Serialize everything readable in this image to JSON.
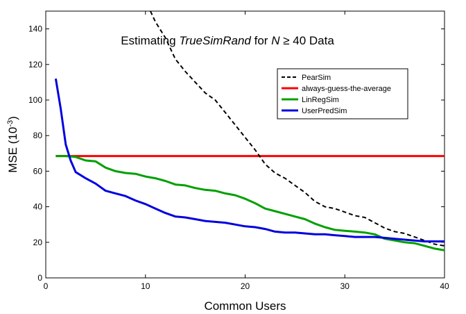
{
  "chart_data": {
    "type": "line",
    "title_parts": [
      {
        "text": "Estimating ",
        "italic": false
      },
      {
        "text": "TrueSimRand",
        "italic": true
      },
      {
        "text": " for ",
        "italic": false
      },
      {
        "text": "N",
        "italic": true
      },
      {
        "text": " ≥ 40 Data",
        "italic": false
      }
    ],
    "xlabel": "Common Users",
    "ylabel_base": "MSE (10",
    "ylabel_sup": "-3",
    "ylabel_end": ")",
    "xlim": [
      0,
      40
    ],
    "ylim": [
      0,
      150
    ],
    "xticks": [
      0,
      10,
      20,
      30,
      40
    ],
    "yticks": [
      0,
      20,
      40,
      60,
      80,
      100,
      120,
      140
    ],
    "legend_position": "upper-right",
    "series": [
      {
        "name": "PearSim",
        "color": "#000000",
        "dash": true,
        "x": [
          10.5,
          11,
          12,
          13,
          14,
          15,
          16,
          17,
          18,
          19,
          20,
          21,
          22,
          23,
          24,
          25,
          26,
          27,
          28,
          29,
          30,
          31,
          32,
          33,
          34,
          35,
          36,
          37,
          38,
          39,
          40
        ],
        "y": [
          150,
          144,
          135,
          123,
          116,
          110,
          104,
          100,
          93,
          86,
          79,
          72,
          64,
          59,
          56,
          52,
          48,
          43,
          40,
          39,
          37,
          35,
          34,
          31,
          28,
          26,
          25,
          23,
          21,
          19,
          18
        ]
      },
      {
        "name": "always-guess-the-average",
        "color": "#ff0000",
        "dash": false,
        "x": [
          1,
          40
        ],
        "y": [
          68.5,
          68.5
        ]
      },
      {
        "name": "LinRegSim",
        "color": "#00a000",
        "dash": false,
        "x": [
          1,
          2,
          3,
          4,
          5,
          6,
          7,
          8,
          9,
          10,
          11,
          12,
          13,
          14,
          15,
          16,
          17,
          18,
          19,
          20,
          21,
          22,
          23,
          24,
          25,
          26,
          27,
          28,
          29,
          30,
          31,
          32,
          33,
          34,
          35,
          36,
          37,
          38,
          39,
          40
        ],
        "y": [
          68.5,
          68.5,
          68,
          66,
          65.5,
          62,
          60,
          59,
          58.5,
          57,
          56,
          54.5,
          52.5,
          52,
          50.5,
          49.5,
          49,
          47.5,
          46.5,
          44.5,
          42,
          39,
          37.5,
          36,
          34.5,
          33,
          30.5,
          28.5,
          27,
          26.5,
          26,
          25.5,
          24.5,
          22,
          21,
          20,
          19.5,
          18,
          16.5,
          15.5
        ]
      },
      {
        "name": "UserPredSim",
        "color": "#0000e0",
        "dash": false,
        "x": [
          1,
          1.5,
          2,
          2.5,
          3,
          4,
          5,
          6,
          7,
          8,
          9,
          10,
          11,
          12,
          13,
          14,
          15,
          16,
          17,
          18,
          19,
          20,
          21,
          22,
          23,
          24,
          25,
          26,
          27,
          28,
          29,
          30,
          31,
          32,
          33,
          34,
          35,
          36,
          37,
          38,
          39,
          40
        ],
        "y": [
          112,
          95,
          75,
          66,
          59.5,
          56,
          53,
          49,
          47.5,
          46,
          43.5,
          41.5,
          39,
          36.5,
          34.5,
          34,
          33,
          32,
          31.5,
          31,
          30,
          29,
          28.5,
          27.5,
          26,
          25.5,
          25.5,
          25,
          24.5,
          24.5,
          24,
          23.5,
          23,
          23,
          23,
          22.5,
          22,
          21.5,
          21,
          20.5,
          20.5,
          20.5
        ]
      }
    ]
  }
}
